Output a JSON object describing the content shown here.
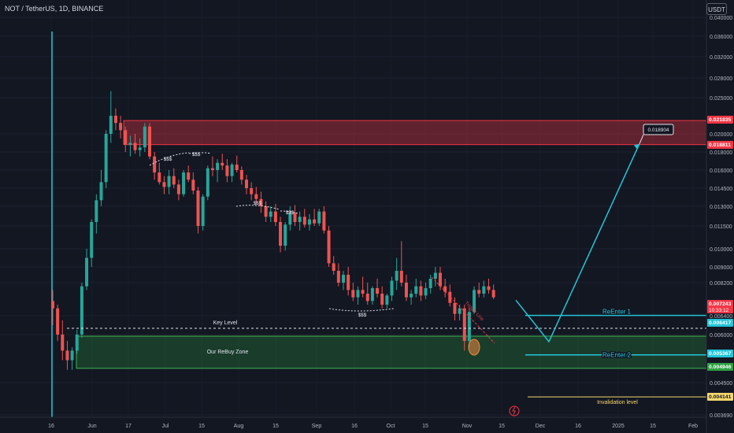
{
  "header": {
    "title": "NOT / TetherUS, 1D, BINANCE",
    "currency_button": "USDT"
  },
  "chart_data": {
    "type": "candlestick",
    "x_ticks": [
      "16",
      "Jun",
      "17",
      "Jul",
      "15",
      "Aug",
      "15",
      "Sep",
      "16",
      "Oct",
      "15",
      "Nov",
      "15",
      "Dec",
      "16",
      "2025",
      "15",
      "Feb"
    ],
    "y_ticks": [
      "0.040000",
      "0.036000",
      "0.032000",
      "0.028000",
      "0.025000",
      "0.020000",
      "0.018000",
      "0.016000",
      "0.014500",
      "0.013000",
      "0.011500",
      "0.010000",
      "0.009000",
      "0.008200",
      "0.006400",
      "0.006000",
      "0.004500",
      "0.003690"
    ],
    "price_tags": [
      {
        "label": "0.021835",
        "color": "#f23645"
      },
      {
        "label": "0.018811",
        "color": "#f23645"
      },
      {
        "label": "0.007243",
        "sub": "10:33:12",
        "color": "#f23645"
      },
      {
        "label": "0.006417",
        "color": "#22c5d8"
      },
      {
        "label": "0.005367",
        "color": "#22c5d8"
      },
      {
        "label": "0.004946",
        "color": "#2ea043"
      },
      {
        "label": "0.004141",
        "color": "#f5d76e",
        "text_color": "#131722"
      }
    ],
    "annotations": {
      "target": "0.018904",
      "key_level": "Key Level",
      "rebuy_zone": "Our ReBuy Zone",
      "reenter_1": "ReEnter 1",
      "reenter_2": "ReEnter 2",
      "invalidation": "Invalidation level",
      "trigger_line": "Trigger Line",
      "liquidity": [
        "$$$",
        "$$$",
        "$$$",
        "$$$",
        "$$$"
      ]
    },
    "zones": {
      "resistance": {
        "top": 0.021835,
        "bottom": 0.018811,
        "color": "#f23645"
      },
      "rebuy": {
        "top": 0.006,
        "bottom": 0.004946,
        "color": "#2ea043"
      }
    },
    "projection_path": [
      0.007243,
      0.006,
      0.018904
    ],
    "candles": [
      [
        0.0072,
        0.0078,
        0.0062,
        0.0068
      ],
      [
        0.0068,
        0.007,
        0.0058,
        0.006
      ],
      [
        0.006,
        0.0063,
        0.0052,
        0.0055
      ],
      [
        0.0055,
        0.0058,
        0.0049,
        0.0052
      ],
      [
        0.0052,
        0.0056,
        0.0049,
        0.0055
      ],
      [
        0.0055,
        0.0061,
        0.0054,
        0.006
      ],
      [
        0.006,
        0.0082,
        0.0059,
        0.008
      ],
      [
        0.008,
        0.01,
        0.0078,
        0.0095
      ],
      [
        0.0095,
        0.012,
        0.009,
        0.0118
      ],
      [
        0.0118,
        0.014,
        0.011,
        0.0135
      ],
      [
        0.0135,
        0.016,
        0.013,
        0.015
      ],
      [
        0.015,
        0.0205,
        0.0145,
        0.02
      ],
      [
        0.02,
        0.026,
        0.019,
        0.0225
      ],
      [
        0.0225,
        0.0235,
        0.0205,
        0.0215
      ],
      [
        0.0215,
        0.0225,
        0.0195,
        0.0205
      ],
      [
        0.0205,
        0.021,
        0.018,
        0.0188
      ],
      [
        0.0188,
        0.0198,
        0.0175,
        0.019
      ],
      [
        0.019,
        0.02,
        0.0178,
        0.0182
      ],
      [
        0.0182,
        0.0195,
        0.0175,
        0.0185
      ],
      [
        0.0185,
        0.0215,
        0.018,
        0.021
      ],
      [
        0.021,
        0.0215,
        0.0172,
        0.0175
      ],
      [
        0.0175,
        0.018,
        0.0152,
        0.0158
      ],
      [
        0.0158,
        0.0168,
        0.0148,
        0.015
      ],
      [
        0.015,
        0.0155,
        0.014,
        0.0146
      ],
      [
        0.0146,
        0.016,
        0.014,
        0.0155
      ],
      [
        0.0155,
        0.0162,
        0.0145,
        0.0148
      ],
      [
        0.0148,
        0.0152,
        0.0135,
        0.014
      ],
      [
        0.014,
        0.016,
        0.0138,
        0.0158
      ],
      [
        0.0158,
        0.0165,
        0.015,
        0.0152
      ],
      [
        0.0152,
        0.0158,
        0.014,
        0.0143
      ],
      [
        0.0143,
        0.0146,
        0.011,
        0.0115
      ],
      [
        0.0115,
        0.014,
        0.0112,
        0.0138
      ],
      [
        0.0138,
        0.0165,
        0.0135,
        0.0162
      ],
      [
        0.0162,
        0.0175,
        0.0155,
        0.016
      ],
      [
        0.016,
        0.0172,
        0.015,
        0.0168
      ],
      [
        0.0168,
        0.0178,
        0.016,
        0.0165
      ],
      [
        0.0165,
        0.0172,
        0.015,
        0.0155
      ],
      [
        0.0155,
        0.0168,
        0.015,
        0.0166
      ],
      [
        0.0166,
        0.0176,
        0.0158,
        0.016
      ],
      [
        0.016,
        0.0164,
        0.0148,
        0.0152
      ],
      [
        0.0152,
        0.0156,
        0.014,
        0.0145
      ],
      [
        0.0145,
        0.015,
        0.0135,
        0.014
      ],
      [
        0.014,
        0.0146,
        0.0132,
        0.0136
      ],
      [
        0.0136,
        0.0142,
        0.0125,
        0.013
      ],
      [
        0.013,
        0.0134,
        0.0118,
        0.0122
      ],
      [
        0.0122,
        0.013,
        0.0118,
        0.0126
      ],
      [
        0.0126,
        0.0132,
        0.0115,
        0.0118
      ],
      [
        0.0118,
        0.0122,
        0.0098,
        0.0102
      ],
      [
        0.0102,
        0.0118,
        0.0099,
        0.0116
      ],
      [
        0.0116,
        0.013,
        0.0112,
        0.0125
      ],
      [
        0.0125,
        0.0131,
        0.0115,
        0.0118
      ],
      [
        0.0118,
        0.0126,
        0.0112,
        0.0122
      ],
      [
        0.0122,
        0.0128,
        0.0114,
        0.0116
      ],
      [
        0.0116,
        0.0124,
        0.0112,
        0.012
      ],
      [
        0.012,
        0.0128,
        0.0115,
        0.0117
      ],
      [
        0.0117,
        0.0128,
        0.0115,
        0.0126
      ],
      [
        0.0126,
        0.013,
        0.011,
        0.0112
      ],
      [
        0.0112,
        0.0115,
        0.009,
        0.0092
      ],
      [
        0.0092,
        0.0096,
        0.0086,
        0.0088
      ],
      [
        0.0088,
        0.0092,
        0.008,
        0.0082
      ],
      [
        0.0082,
        0.0088,
        0.0078,
        0.0086
      ],
      [
        0.0086,
        0.009,
        0.0075,
        0.0078
      ],
      [
        0.0078,
        0.0082,
        0.0072,
        0.0074
      ],
      [
        0.0074,
        0.008,
        0.007,
        0.0078
      ],
      [
        0.0078,
        0.0085,
        0.0074,
        0.0076
      ],
      [
        0.0076,
        0.0082,
        0.007,
        0.0072
      ],
      [
        0.0072,
        0.008,
        0.007,
        0.0079
      ],
      [
        0.0079,
        0.0084,
        0.0074,
        0.0076
      ],
      [
        0.0076,
        0.008,
        0.0068,
        0.007
      ],
      [
        0.007,
        0.0076,
        0.0068,
        0.0075
      ],
      [
        0.0075,
        0.0085,
        0.0072,
        0.0083
      ],
      [
        0.0083,
        0.0095,
        0.0078,
        0.0088
      ],
      [
        0.0088,
        0.0105,
        0.008,
        0.0082
      ],
      [
        0.0082,
        0.0086,
        0.0072,
        0.0074
      ],
      [
        0.0074,
        0.0078,
        0.007,
        0.0076
      ],
      [
        0.0076,
        0.0084,
        0.0074,
        0.008
      ],
      [
        0.008,
        0.0083,
        0.0072,
        0.0075
      ],
      [
        0.0075,
        0.0082,
        0.0073,
        0.0079
      ],
      [
        0.0079,
        0.0086,
        0.0076,
        0.0084
      ],
      [
        0.0084,
        0.009,
        0.008,
        0.0087
      ],
      [
        0.0087,
        0.009,
        0.0078,
        0.008
      ],
      [
        0.008,
        0.0084,
        0.0074,
        0.0077
      ],
      [
        0.0077,
        0.0081,
        0.0069,
        0.0071
      ],
      [
        0.0071,
        0.0074,
        0.0063,
        0.0065
      ],
      [
        0.0065,
        0.007,
        0.0063,
        0.0068
      ],
      [
        0.0068,
        0.007,
        0.0055,
        0.0058
      ],
      [
        0.0058,
        0.0068,
        0.0056,
        0.0066
      ],
      [
        0.0066,
        0.008,
        0.0065,
        0.0078
      ],
      [
        0.0078,
        0.0082,
        0.0074,
        0.0076
      ],
      [
        0.0076,
        0.0083,
        0.0074,
        0.008
      ],
      [
        0.008,
        0.0084,
        0.0076,
        0.0078
      ],
      [
        0.0078,
        0.0081,
        0.0073,
        0.0074
      ]
    ]
  }
}
